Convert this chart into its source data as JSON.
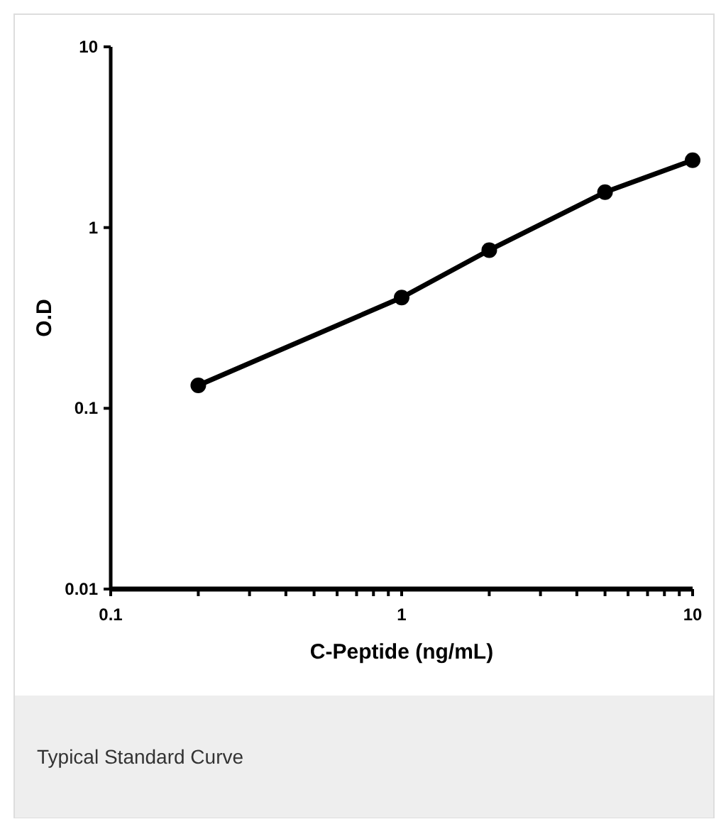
{
  "chart_data": {
    "type": "line",
    "xlabel": "C-Peptide (ng/mL)",
    "ylabel": "O.D",
    "log": "xy",
    "marker": "circle",
    "line_style": "solid",
    "grid": false,
    "x": [
      0.2,
      1,
      2,
      5,
      10
    ],
    "series": [
      {
        "color": "#000000",
        "values": [
          0.134,
          0.41,
          0.75,
          1.57,
          2.36
        ]
      }
    ],
    "xlim": [
      0.1,
      10
    ],
    "ylim": [
      0.01,
      10
    ],
    "xticks": [
      0.1,
      {
        "value": 0.2,
        "label": null
      },
      {
        "value": 0.3,
        "label": null
      },
      {
        "value": 0.4,
        "label": null
      },
      {
        "value": 0.5,
        "label": null
      },
      {
        "value": 0.6,
        "label": null
      },
      {
        "value": 0.7,
        "label": null
      },
      {
        "value": 0.8,
        "label": null
      },
      {
        "value": 0.9,
        "label": null
      },
      1,
      {
        "value": 2,
        "label": null
      },
      {
        "value": 3,
        "label": null
      },
      {
        "value": 4,
        "label": null
      },
      {
        "value": 5,
        "label": null
      },
      {
        "value": 6,
        "label": null
      },
      {
        "value": 7,
        "label": null
      },
      {
        "value": 8,
        "label": null
      },
      {
        "value": 9,
        "label": null
      },
      10
    ],
    "yticks": [
      0.01,
      0.1,
      1,
      10
    ],
    "annotations": [
      "Typical Standard Curve"
    ]
  }
}
